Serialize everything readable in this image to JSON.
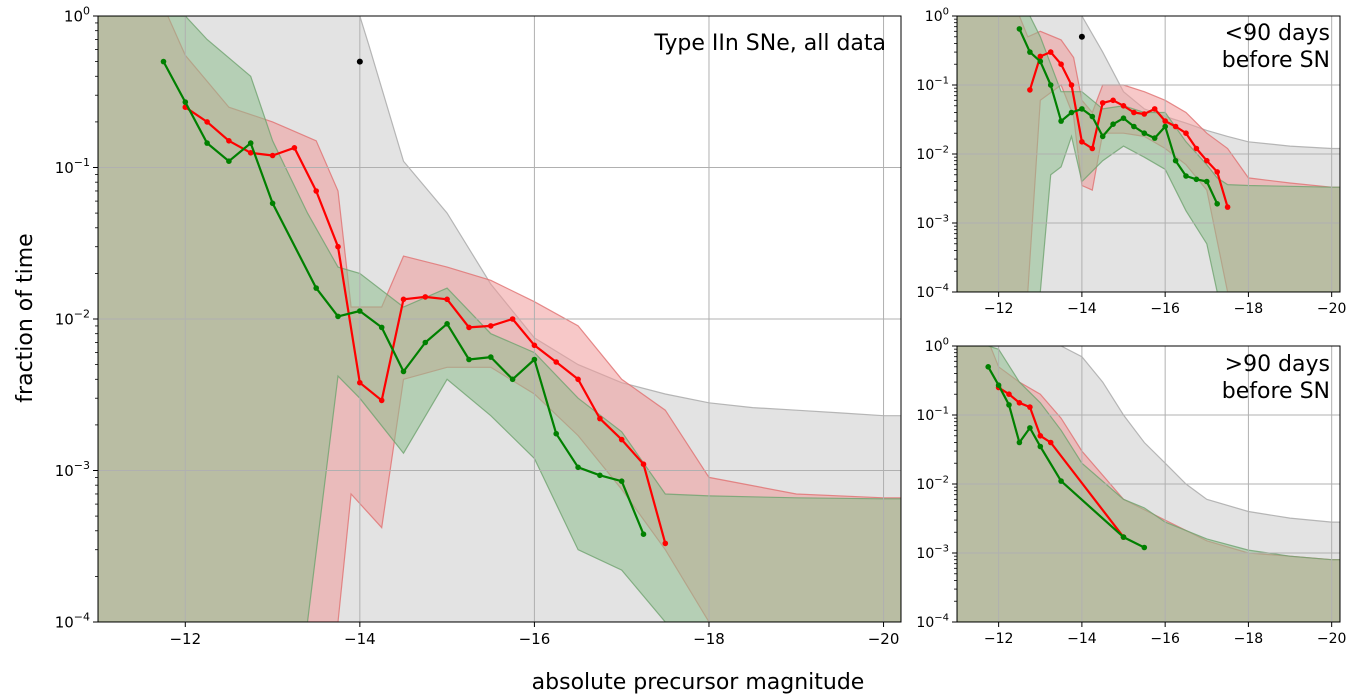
{
  "figure": {
    "xlabel": "absolute precursor magnitude",
    "ylabel": "fraction of time"
  },
  "colors": {
    "red": "#ff0000",
    "green": "#008000",
    "gray_band": "#d9d9d9",
    "red_band": "#f09a9a",
    "green_band": "#8fbf8f",
    "grid": "#b0b0b0"
  },
  "chart_data": [
    {
      "id": "main",
      "type": "line",
      "annotation": [
        "Type IIn SNe, all data"
      ],
      "xlim": [
        -11,
        -20.2
      ],
      "ylim": [
        0.0001,
        1
      ],
      "yscale": "log",
      "grid": true,
      "x_ticks": [
        -12,
        -14,
        -16,
        -18,
        -20
      ],
      "x_tick_labels": [
        "−12",
        "−14",
        "−16",
        "−18",
        "−20"
      ],
      "y_ticks": [
        0.0001,
        0.001,
        0.01,
        0.1,
        1
      ],
      "y_tick_labels": [
        [
          "10",
          "−4"
        ],
        [
          "10",
          "−3"
        ],
        [
          "10",
          "−2"
        ],
        [
          "10",
          "−1"
        ],
        [
          "10",
          "0"
        ]
      ],
      "series": [
        {
          "color": "red",
          "x": [
            -12,
            -12.25,
            -12.5,
            -12.75,
            -13,
            -13.25,
            -13.5,
            -13.75,
            -14,
            -14.25,
            -14.5,
            -14.75,
            -15,
            -15.25,
            -15.5,
            -15.75,
            -16,
            -16.25,
            -16.5,
            -16.75,
            -17,
            -17.25,
            -17.5
          ],
          "y": [
            0.25,
            0.2,
            0.15,
            0.125,
            0.12,
            0.135,
            0.07,
            0.03,
            0.0038,
            0.0029,
            0.0135,
            0.014,
            0.0135,
            0.0088,
            0.009,
            0.01,
            0.0067,
            0.0052,
            0.004,
            0.0022,
            0.0016,
            0.0011,
            0.00033
          ]
        },
        {
          "color": "green",
          "x": [
            -11.75,
            -12,
            -12.25,
            -12.5,
            -12.75,
            -13,
            -13.5,
            -13.75,
            -14,
            -14.25,
            -14.5,
            -14.75,
            -15,
            -15.25,
            -15.5,
            -15.75,
            -16,
            -16.25,
            -16.5,
            -16.75,
            -17,
            -17.25
          ],
          "y": [
            0.5,
            0.27,
            0.145,
            0.11,
            0.145,
            0.058,
            0.016,
            0.0104,
            0.0113,
            0.0088,
            0.0045,
            0.007,
            0.0093,
            0.0054,
            0.0056,
            0.004,
            0.0054,
            0.00175,
            0.00105,
            0.00093,
            0.00085,
            0.00038
          ]
        }
      ],
      "points": [
        {
          "x": -14,
          "y": 0.5
        }
      ],
      "bands": [
        {
          "name": "gray",
          "x": [
            -11,
            -11.75,
            -12,
            -12.5,
            -13,
            -13.5,
            -14,
            -14.1,
            -14.5,
            -15,
            -15.5,
            -16,
            -16.5,
            -17,
            -17.5,
            -18,
            -18.5,
            -19,
            -19.5,
            -20,
            -20.2
          ],
          "upper": [
            1,
            1,
            1,
            1,
            1,
            1,
            1,
            0.65,
            0.11,
            0.05,
            0.017,
            0.0075,
            0.005,
            0.0038,
            0.0032,
            0.0028,
            0.0026,
            0.0025,
            0.0024,
            0.0023,
            0.0023
          ],
          "lower": [
            0.0001,
            0.0001,
            0.0001,
            0.0001,
            0.0001,
            0.0001,
            0.0001,
            0.0001,
            0.0001,
            0.0001,
            0.0001,
            0.0001,
            0.0001,
            0.0001,
            0.0001,
            0.0001,
            0.0001,
            0.0001,
            0.0001,
            0.0001,
            0.0001
          ]
        },
        {
          "name": "red",
          "x": [
            -11,
            -11.5,
            -11.8,
            -12,
            -12.5,
            -13,
            -13.5,
            -13.75,
            -13.9,
            -14.25,
            -14.5,
            -15,
            -15.5,
            -16,
            -16.5,
            -17,
            -17.5,
            -18,
            -19,
            -20,
            -20.2
          ],
          "upper": [
            1,
            1,
            1,
            0.55,
            0.25,
            0.2,
            0.15,
            0.07,
            0.012,
            0.012,
            0.026,
            0.022,
            0.018,
            0.013,
            0.009,
            0.004,
            0.0025,
            0.0009,
            0.0007,
            0.00066,
            0.00066
          ],
          "lower": [
            0.0001,
            0.0001,
            0.0001,
            0.0001,
            0.0001,
            0.0001,
            0.0001,
            0.0001,
            0.0007,
            0.00042,
            0.004,
            0.0048,
            0.0048,
            0.0032,
            0.0017,
            0.00075,
            0.0003,
            0.0001,
            0.0001,
            0.0001,
            0.0001
          ]
        },
        {
          "name": "green",
          "x": [
            -11,
            -11.75,
            -12,
            -12.25,
            -12.75,
            -13,
            -13.4,
            -13.75,
            -14,
            -14.5,
            -15,
            -15.5,
            -16,
            -16.5,
            -17,
            -17.5,
            -18,
            -19,
            -20,
            -20.2
          ],
          "upper": [
            1,
            1,
            1,
            0.7,
            0.4,
            0.15,
            0.05,
            0.022,
            0.02,
            0.012,
            0.016,
            0.008,
            0.006,
            0.003,
            0.0018,
            0.0007,
            0.00068,
            0.00066,
            0.00065,
            0.00065
          ],
          "lower": [
            0.0001,
            0.0001,
            0.0001,
            0.0001,
            0.0001,
            0.0001,
            0.0001,
            0.0042,
            0.003,
            0.0013,
            0.004,
            0.0023,
            0.0012,
            0.0003,
            0.00022,
            0.0001,
            0.0001,
            0.0001,
            0.0001,
            0.0001
          ]
        }
      ]
    },
    {
      "id": "top-right",
      "type": "line",
      "annotation": [
        "<90 days",
        "before SN"
      ],
      "xlim": [
        -11,
        -20.2
      ],
      "ylim": [
        0.0001,
        1
      ],
      "yscale": "log",
      "grid": true,
      "x_ticks": [
        -12,
        -14,
        -16,
        -18,
        -20
      ],
      "x_tick_labels": [
        "−12",
        "−14",
        "−16",
        "−18",
        "−20"
      ],
      "y_ticks": [
        0.0001,
        0.001,
        0.01,
        0.1,
        1
      ],
      "y_tick_labels": [
        [
          "10",
          "−4"
        ],
        [
          "10",
          "−3"
        ],
        [
          "10",
          "−2"
        ],
        [
          "10",
          "−1"
        ],
        [
          "10",
          "0"
        ]
      ],
      "series": [
        {
          "color": "red",
          "x": [
            -12.75,
            -13,
            -13.25,
            -13.5,
            -13.75,
            -14,
            -14.25,
            -14.5,
            -14.75,
            -15,
            -15.25,
            -15.5,
            -15.75,
            -16,
            -16.25,
            -16.5,
            -16.75,
            -17,
            -17.25,
            -17.5
          ],
          "y": [
            0.085,
            0.26,
            0.3,
            0.2,
            0.1,
            0.015,
            0.012,
            0.055,
            0.06,
            0.05,
            0.04,
            0.038,
            0.045,
            0.03,
            0.025,
            0.02,
            0.012,
            0.008,
            0.0055,
            0.0017
          ]
        },
        {
          "color": "green",
          "x": [
            -12.5,
            -12.75,
            -13,
            -13.25,
            -13.5,
            -13.75,
            -14,
            -14.25,
            -14.5,
            -14.75,
            -15,
            -15.25,
            -15.5,
            -15.75,
            -16,
            -16.25,
            -16.5,
            -16.75,
            -17,
            -17.25
          ],
          "y": [
            0.65,
            0.3,
            0.22,
            0.1,
            0.03,
            0.04,
            0.045,
            0.035,
            0.018,
            0.027,
            0.033,
            0.025,
            0.02,
            0.017,
            0.025,
            0.008,
            0.0048,
            0.0043,
            0.004,
            0.0019
          ]
        }
      ],
      "points": [
        {
          "x": -14,
          "y": 0.5
        }
      ],
      "bands": [
        {
          "name": "gray",
          "x": [
            -11,
            -12.5,
            -13,
            -13.5,
            -13.75,
            -14,
            -14.5,
            -15,
            -15.5,
            -16,
            -16.5,
            -17,
            -17.5,
            -18,
            -19,
            -20,
            -20.2
          ],
          "upper": [
            1,
            1,
            1,
            1,
            1,
            1,
            0.3,
            0.08,
            0.045,
            0.035,
            0.028,
            0.022,
            0.018,
            0.015,
            0.013,
            0.012,
            0.012
          ],
          "lower": [
            0.0001,
            0.0001,
            0.0001,
            0.0001,
            0.0001,
            0.0001,
            0.0001,
            0.0001,
            0.0001,
            0.0001,
            0.0001,
            0.0001,
            0.0001,
            0.0001,
            0.0001,
            0.0001,
            0.0001
          ]
        },
        {
          "name": "red",
          "x": [
            -11,
            -12.5,
            -12.7,
            -13,
            -13.5,
            -13.8,
            -14,
            -14.25,
            -14.5,
            -15,
            -15.5,
            -16,
            -16.5,
            -17,
            -17.5,
            -18,
            -19,
            -20,
            -20.2
          ],
          "upper": [
            1,
            1,
            0.5,
            0.6,
            0.45,
            0.25,
            0.06,
            0.04,
            0.1,
            0.1,
            0.08,
            0.06,
            0.04,
            0.02,
            0.012,
            0.0045,
            0.0038,
            0.0033,
            0.0033
          ],
          "lower": [
            0.0001,
            0.0001,
            0.0001,
            0.06,
            0.1,
            0.035,
            0.0035,
            0.003,
            0.02,
            0.02,
            0.018,
            0.012,
            0.007,
            0.003,
            0.0001,
            0.0001,
            0.0001,
            0.0001,
            0.0001
          ]
        },
        {
          "name": "green",
          "x": [
            -11,
            -12.5,
            -12.75,
            -13,
            -13.25,
            -13.5,
            -13.75,
            -14,
            -14.5,
            -15,
            -15.5,
            -16,
            -16.5,
            -17,
            -17.25,
            -17.5,
            -18,
            -19,
            -20,
            -20.2
          ],
          "upper": [
            1,
            1,
            1,
            0.5,
            0.2,
            0.08,
            0.08,
            0.08,
            0.045,
            0.05,
            0.04,
            0.04,
            0.015,
            0.007,
            0.0045,
            0.0036,
            0.0035,
            0.0034,
            0.0033,
            0.0033
          ],
          "lower": [
            0.0001,
            0.0001,
            0.0001,
            0.0001,
            0.005,
            0.0065,
            0.018,
            0.004,
            0.008,
            0.013,
            0.009,
            0.006,
            0.0015,
            0.0005,
            0.0001,
            0.0001,
            0.0001,
            0.0001,
            0.0001,
            0.0001
          ]
        }
      ]
    },
    {
      "id": "bottom-right",
      "type": "line",
      "annotation": [
        ">90 days",
        "before SN"
      ],
      "xlim": [
        -11,
        -20.2
      ],
      "ylim": [
        0.0001,
        1
      ],
      "yscale": "log",
      "grid": true,
      "x_ticks": [
        -12,
        -14,
        -16,
        -18,
        -20
      ],
      "x_tick_labels": [
        "−12",
        "−14",
        "−16",
        "−18",
        "−20"
      ],
      "y_ticks": [
        0.0001,
        0.001,
        0.01,
        0.1,
        1
      ],
      "y_tick_labels": [
        [
          "10",
          "−4"
        ],
        [
          "10",
          "−3"
        ],
        [
          "10",
          "−2"
        ],
        [
          "10",
          "−1"
        ],
        [
          "10",
          "0"
        ]
      ],
      "series": [
        {
          "color": "red",
          "x": [
            -12,
            -12.25,
            -12.5,
            -12.75,
            -13,
            -13.25,
            -15
          ],
          "y": [
            0.25,
            0.2,
            0.15,
            0.13,
            0.05,
            0.04,
            0.0017
          ]
        },
        {
          "color": "green",
          "x": [
            -11.75,
            -12,
            -12.25,
            -12.5,
            -12.75,
            -13,
            -13.5,
            -15,
            -15.5
          ],
          "y": [
            0.5,
            0.27,
            0.14,
            0.04,
            0.065,
            0.035,
            0.011,
            0.0017,
            0.0012
          ]
        }
      ],
      "points": [],
      "bands": [
        {
          "name": "gray",
          "x": [
            -11,
            -12,
            -12.5,
            -13,
            -13.5,
            -14,
            -14.5,
            -15,
            -15.5,
            -16,
            -16.5,
            -17,
            -18,
            -19,
            -20,
            -20.2
          ],
          "upper": [
            1,
            1,
            1,
            1,
            1,
            0.7,
            0.3,
            0.1,
            0.04,
            0.02,
            0.01,
            0.006,
            0.004,
            0.0032,
            0.0028,
            0.0028
          ],
          "lower": [
            0.0001,
            0.0001,
            0.0001,
            0.0001,
            0.0001,
            0.0001,
            0.0001,
            0.0001,
            0.0001,
            0.0001,
            0.0001,
            0.0001,
            0.0001,
            0.0001,
            0.0001,
            0.0001
          ]
        },
        {
          "name": "red",
          "x": [
            -11,
            -11.8,
            -12,
            -12.5,
            -13,
            -13.5,
            -14,
            -15,
            -16,
            -17,
            -18,
            -19,
            -20,
            -20.2
          ],
          "upper": [
            1,
            1,
            0.5,
            0.3,
            0.2,
            0.09,
            0.03,
            0.006,
            0.003,
            0.0015,
            0.001,
            0.0009,
            0.0008,
            0.0008
          ],
          "lower": [
            0.0001,
            0.0001,
            0.0001,
            0.0001,
            0.0001,
            0.0001,
            0.0001,
            0.0001,
            0.0001,
            0.0001,
            0.0001,
            0.0001,
            0.0001,
            0.0001
          ]
        },
        {
          "name": "green",
          "x": [
            -11,
            -11.75,
            -12,
            -12.5,
            -13,
            -13.5,
            -14,
            -15,
            -15.5,
            -16,
            -17,
            -18,
            -19,
            -20,
            -20.2
          ],
          "upper": [
            1,
            1,
            0.9,
            0.3,
            0.15,
            0.06,
            0.02,
            0.006,
            0.0045,
            0.0028,
            0.0016,
            0.0011,
            0.0009,
            0.0008,
            0.0008
          ],
          "lower": [
            0.0001,
            0.0001,
            0.0001,
            0.0001,
            0.0001,
            0.0001,
            0.0001,
            0.0001,
            0.0001,
            0.0001,
            0.0001,
            0.0001,
            0.0001,
            0.0001,
            0.0001
          ]
        }
      ]
    }
  ]
}
